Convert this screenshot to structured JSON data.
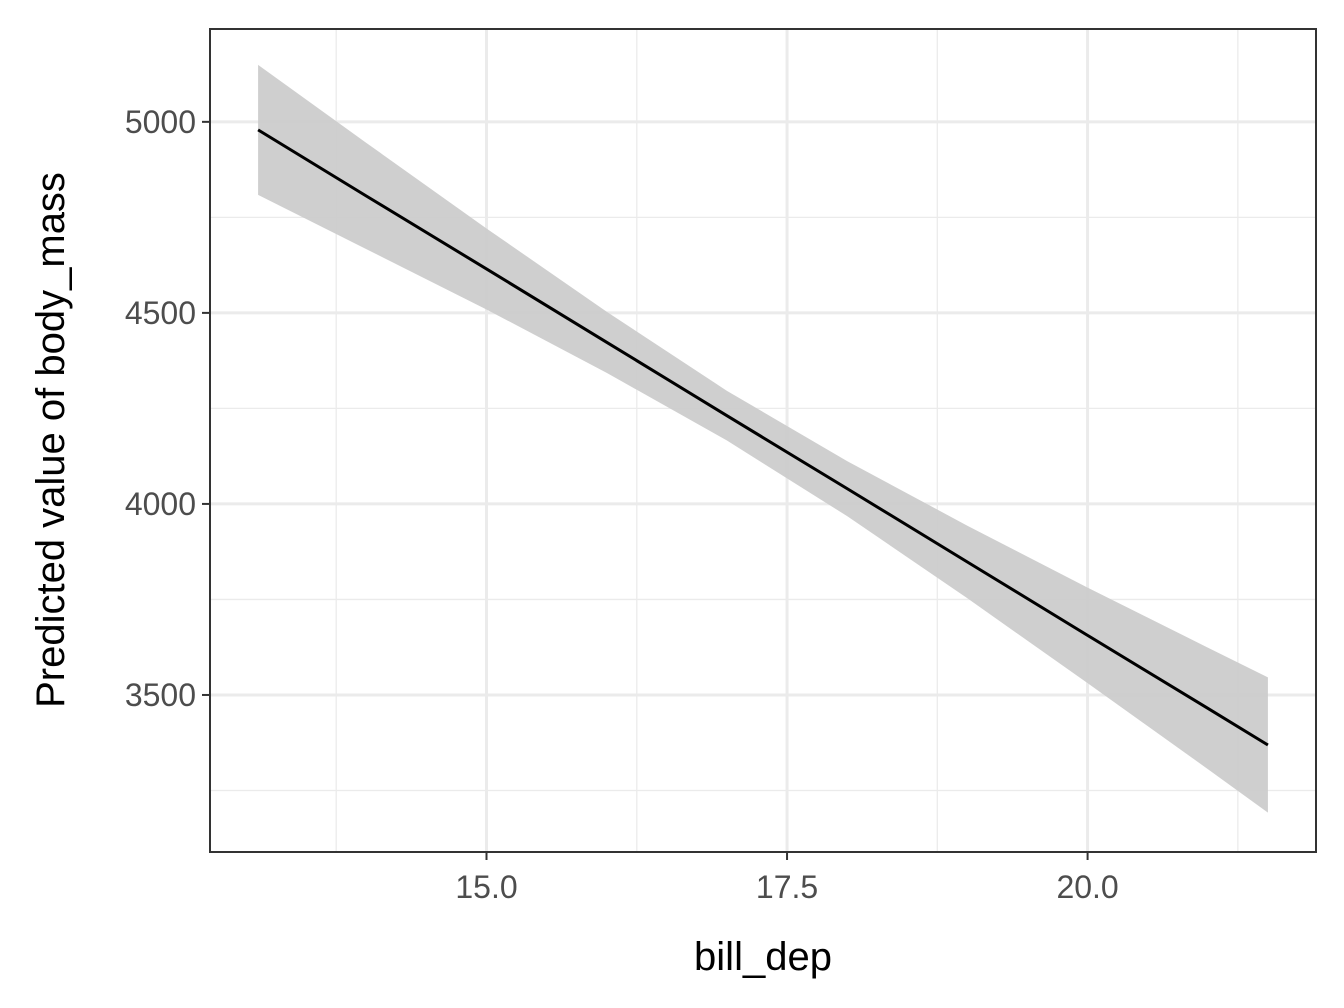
{
  "chart_data": {
    "type": "line",
    "x_label": "bill_dep",
    "y_label": "Predicted value of body_mass",
    "x": [
      13.1,
      14,
      15,
      16,
      17,
      18,
      19,
      20,
      21,
      21.5
    ],
    "series": [
      {
        "color": "#000000",
        "values": [
          4979,
          4806,
          4615,
          4423,
          4231,
          4040,
          3848,
          3656,
          3465,
          3369
        ],
        "lower": [
          4809,
          4667,
          4509,
          4343,
          4166,
          3968,
          3753,
          3531,
          3306,
          3192
        ],
        "upper": [
          5149,
          4945,
          4721,
          4503,
          4296,
          4112,
          3943,
          3781,
          3624,
          3546
        ],
        "band_color": "#cccccc"
      }
    ],
    "xlim": [
      12.7,
      21.9
    ],
    "ylim": [
      3089,
      5243
    ],
    "xticks": [
      {
        "value": 15,
        "label": "15.0"
      },
      17.5,
      {
        "value": 20,
        "label": "20.0"
      }
    ],
    "yticks": [
      3500,
      4000,
      4500,
      5000
    ],
    "x_minor_grid": [
      13.75,
      16.25,
      18.75,
      21.25
    ],
    "y_minor_grid": [
      3250,
      3750,
      4250,
      4750
    ],
    "grid": true
  }
}
